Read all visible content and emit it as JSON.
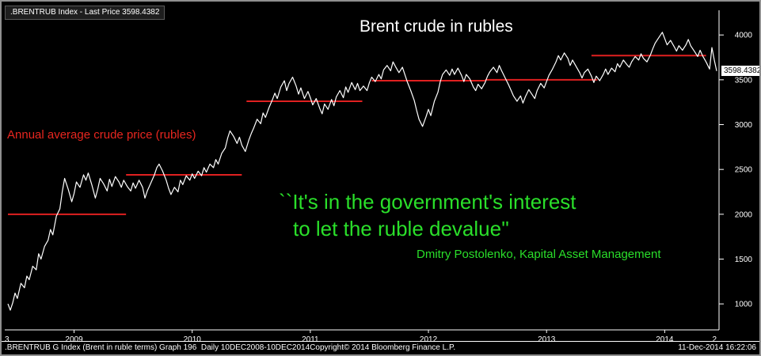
{
  "colors": {
    "background": "#000000",
    "price_line": "#ffffff",
    "average_line": "#e02020",
    "annotation_red": "#e8261f",
    "quote_green": "#2adf2a",
    "axis": "#ffffff",
    "tag_bg": "#ffffff",
    "tag_text": "#000000"
  },
  "legend": {
    "label": ".BRENTRUB Index - Last Price 3598.4382"
  },
  "title": "Brent crude in rubles",
  "annotation": {
    "text": "Annual average crude price (rubles)"
  },
  "quote": {
    "line1": "``It's in the government's interest",
    "line2": "to let the ruble devalue''",
    "attribution": "Dmitry Postolenko, Kapital Asset Management"
  },
  "last_price_tag": "3598.4382",
  "x_axis": {
    "partial_left": "3",
    "partial_right": "2",
    "years": [
      "2009",
      "2010",
      "2011",
      "2012",
      "2013",
      "2014"
    ]
  },
  "status_bar": {
    "left": ".BRENTRUB G Index (Brent in ruble terms) Graph 196  Daily 10DEC2008-10DEC2014",
    "center": "Copyright© 2014 Bloomberg Finance L.P.",
    "right": "11-Dec-2014 16:22:06"
  },
  "chart_data": {
    "type": "line",
    "title": "Brent crude in rubles",
    "xlabel": "",
    "ylabel": "",
    "x_unit": "decimal_year",
    "x_range": [
      2008.94,
      2014.96
    ],
    "ylim": [
      710,
      4240
    ],
    "y_ticks": [
      1000,
      1500,
      2000,
      2500,
      3000,
      3500,
      4000
    ],
    "x_tick_years": [
      2009,
      2010,
      2011,
      2012,
      2013,
      2014
    ],
    "grid": false,
    "legend_position": "top-left",
    "last_price": 3598.4382,
    "annual_averages": [
      {
        "year": 2009,
        "value": 2000,
        "span": [
          2008.94,
          2009.94
        ]
      },
      {
        "year": 2010,
        "value": 2440,
        "span": [
          2009.94,
          2010.92
        ]
      },
      {
        "year": 2011,
        "value": 3260,
        "span": [
          2010.96,
          2011.94
        ]
      },
      {
        "year": 2012,
        "value": 3490,
        "span": [
          2012.02,
          2012.98
        ]
      },
      {
        "year": 2013,
        "value": 3500,
        "span": [
          2012.98,
          2013.93
        ]
      },
      {
        "year": 2014,
        "value": 3770,
        "span": [
          2013.88,
          2014.85
        ]
      }
    ],
    "series": [
      {
        "name": ".BRENTRUB Index - Last Price",
        "color": "#ffffff",
        "points": [
          [
            2008.94,
            1000
          ],
          [
            2008.96,
            930
          ],
          [
            2008.98,
            1010
          ],
          [
            2009.0,
            1120
          ],
          [
            2009.02,
            1060
          ],
          [
            2009.05,
            1230
          ],
          [
            2009.08,
            1180
          ],
          [
            2009.1,
            1310
          ],
          [
            2009.12,
            1270
          ],
          [
            2009.15,
            1420
          ],
          [
            2009.18,
            1380
          ],
          [
            2009.2,
            1560
          ],
          [
            2009.22,
            1500
          ],
          [
            2009.25,
            1640
          ],
          [
            2009.28,
            1710
          ],
          [
            2009.3,
            1830
          ],
          [
            2009.32,
            1770
          ],
          [
            2009.35,
            1980
          ],
          [
            2009.38,
            2060
          ],
          [
            2009.4,
            2250
          ],
          [
            2009.42,
            2400
          ],
          [
            2009.45,
            2280
          ],
          [
            2009.48,
            2140
          ],
          [
            2009.5,
            2230
          ],
          [
            2009.52,
            2360
          ],
          [
            2009.55,
            2300
          ],
          [
            2009.58,
            2440
          ],
          [
            2009.6,
            2380
          ],
          [
            2009.62,
            2460
          ],
          [
            2009.65,
            2330
          ],
          [
            2009.68,
            2180
          ],
          [
            2009.7,
            2280
          ],
          [
            2009.72,
            2400
          ],
          [
            2009.75,
            2340
          ],
          [
            2009.78,
            2260
          ],
          [
            2009.8,
            2390
          ],
          [
            2009.82,
            2310
          ],
          [
            2009.85,
            2420
          ],
          [
            2009.88,
            2360
          ],
          [
            2009.9,
            2300
          ],
          [
            2009.92,
            2380
          ],
          [
            2009.95,
            2310
          ],
          [
            2009.98,
            2260
          ],
          [
            2010.0,
            2350
          ],
          [
            2010.02,
            2290
          ],
          [
            2010.05,
            2380
          ],
          [
            2010.08,
            2300
          ],
          [
            2010.1,
            2180
          ],
          [
            2010.12,
            2260
          ],
          [
            2010.15,
            2350
          ],
          [
            2010.18,
            2440
          ],
          [
            2010.2,
            2520
          ],
          [
            2010.22,
            2560
          ],
          [
            2010.25,
            2480
          ],
          [
            2010.28,
            2380
          ],
          [
            2010.3,
            2290
          ],
          [
            2010.32,
            2220
          ],
          [
            2010.35,
            2300
          ],
          [
            2010.38,
            2250
          ],
          [
            2010.4,
            2380
          ],
          [
            2010.42,
            2330
          ],
          [
            2010.45,
            2430
          ],
          [
            2010.48,
            2380
          ],
          [
            2010.5,
            2450
          ],
          [
            2010.52,
            2400
          ],
          [
            2010.55,
            2480
          ],
          [
            2010.58,
            2430
          ],
          [
            2010.6,
            2520
          ],
          [
            2010.62,
            2470
          ],
          [
            2010.65,
            2560
          ],
          [
            2010.68,
            2520
          ],
          [
            2010.7,
            2610
          ],
          [
            2010.72,
            2560
          ],
          [
            2010.75,
            2680
          ],
          [
            2010.78,
            2740
          ],
          [
            2010.8,
            2850
          ],
          [
            2010.82,
            2930
          ],
          [
            2010.85,
            2870
          ],
          [
            2010.88,
            2790
          ],
          [
            2010.9,
            2860
          ],
          [
            2010.92,
            2770
          ],
          [
            2010.95,
            2700
          ],
          [
            2010.98,
            2830
          ],
          [
            2011.0,
            2900
          ],
          [
            2011.02,
            2960
          ],
          [
            2011.05,
            3060
          ],
          [
            2011.08,
            3010
          ],
          [
            2011.1,
            3130
          ],
          [
            2011.12,
            3080
          ],
          [
            2011.15,
            3190
          ],
          [
            2011.18,
            3280
          ],
          [
            2011.2,
            3350
          ],
          [
            2011.22,
            3290
          ],
          [
            2011.25,
            3420
          ],
          [
            2011.28,
            3490
          ],
          [
            2011.3,
            3380
          ],
          [
            2011.32,
            3460
          ],
          [
            2011.35,
            3530
          ],
          [
            2011.38,
            3430
          ],
          [
            2011.4,
            3340
          ],
          [
            2011.42,
            3410
          ],
          [
            2011.45,
            3290
          ],
          [
            2011.48,
            3370
          ],
          [
            2011.5,
            3300
          ],
          [
            2011.52,
            3220
          ],
          [
            2011.55,
            3290
          ],
          [
            2011.58,
            3180
          ],
          [
            2011.6,
            3120
          ],
          [
            2011.62,
            3230
          ],
          [
            2011.65,
            3170
          ],
          [
            2011.68,
            3280
          ],
          [
            2011.7,
            3210
          ],
          [
            2011.72,
            3310
          ],
          [
            2011.75,
            3380
          ],
          [
            2011.78,
            3300
          ],
          [
            2011.8,
            3420
          ],
          [
            2011.82,
            3360
          ],
          [
            2011.85,
            3470
          ],
          [
            2011.88,
            3390
          ],
          [
            2011.9,
            3460
          ],
          [
            2011.92,
            3380
          ],
          [
            2011.95,
            3430
          ],
          [
            2011.98,
            3380
          ],
          [
            2012.0,
            3470
          ],
          [
            2012.02,
            3530
          ],
          [
            2012.05,
            3480
          ],
          [
            2012.08,
            3560
          ],
          [
            2012.1,
            3510
          ],
          [
            2012.12,
            3610
          ],
          [
            2012.15,
            3660
          ],
          [
            2012.18,
            3600
          ],
          [
            2012.2,
            3700
          ],
          [
            2012.22,
            3650
          ],
          [
            2012.25,
            3580
          ],
          [
            2012.28,
            3640
          ],
          [
            2012.3,
            3560
          ],
          [
            2012.32,
            3480
          ],
          [
            2012.35,
            3380
          ],
          [
            2012.38,
            3270
          ],
          [
            2012.4,
            3160
          ],
          [
            2012.42,
            3060
          ],
          [
            2012.45,
            2980
          ],
          [
            2012.48,
            3090
          ],
          [
            2012.5,
            3170
          ],
          [
            2012.52,
            3100
          ],
          [
            2012.55,
            3260
          ],
          [
            2012.58,
            3360
          ],
          [
            2012.6,
            3480
          ],
          [
            2012.62,
            3560
          ],
          [
            2012.65,
            3610
          ],
          [
            2012.68,
            3550
          ],
          [
            2012.7,
            3620
          ],
          [
            2012.72,
            3560
          ],
          [
            2012.75,
            3630
          ],
          [
            2012.78,
            3550
          ],
          [
            2012.8,
            3480
          ],
          [
            2012.82,
            3560
          ],
          [
            2012.85,
            3510
          ],
          [
            2012.88,
            3420
          ],
          [
            2012.9,
            3380
          ],
          [
            2012.92,
            3450
          ],
          [
            2012.95,
            3400
          ],
          [
            2012.98,
            3470
          ],
          [
            2013.0,
            3540
          ],
          [
            2013.02,
            3590
          ],
          [
            2013.05,
            3640
          ],
          [
            2013.08,
            3580
          ],
          [
            2013.1,
            3660
          ],
          [
            2013.12,
            3600
          ],
          [
            2013.15,
            3520
          ],
          [
            2013.18,
            3440
          ],
          [
            2013.2,
            3380
          ],
          [
            2013.22,
            3320
          ],
          [
            2013.25,
            3260
          ],
          [
            2013.28,
            3320
          ],
          [
            2013.3,
            3240
          ],
          [
            2013.32,
            3310
          ],
          [
            2013.35,
            3390
          ],
          [
            2013.38,
            3330
          ],
          [
            2013.4,
            3290
          ],
          [
            2013.42,
            3380
          ],
          [
            2013.45,
            3460
          ],
          [
            2013.48,
            3410
          ],
          [
            2013.5,
            3480
          ],
          [
            2013.52,
            3550
          ],
          [
            2013.55,
            3620
          ],
          [
            2013.58,
            3700
          ],
          [
            2013.6,
            3770
          ],
          [
            2013.62,
            3720
          ],
          [
            2013.65,
            3800
          ],
          [
            2013.68,
            3740
          ],
          [
            2013.7,
            3660
          ],
          [
            2013.72,
            3720
          ],
          [
            2013.75,
            3650
          ],
          [
            2013.78,
            3580
          ],
          [
            2013.8,
            3520
          ],
          [
            2013.82,
            3580
          ],
          [
            2013.85,
            3620
          ],
          [
            2013.88,
            3540
          ],
          [
            2013.9,
            3470
          ],
          [
            2013.92,
            3540
          ],
          [
            2013.95,
            3490
          ],
          [
            2013.98,
            3560
          ],
          [
            2014.0,
            3620
          ],
          [
            2014.02,
            3560
          ],
          [
            2014.05,
            3630
          ],
          [
            2014.08,
            3590
          ],
          [
            2014.1,
            3680
          ],
          [
            2014.12,
            3640
          ],
          [
            2014.15,
            3720
          ],
          [
            2014.18,
            3670
          ],
          [
            2014.2,
            3640
          ],
          [
            2014.22,
            3700
          ],
          [
            2014.25,
            3760
          ],
          [
            2014.28,
            3720
          ],
          [
            2014.3,
            3790
          ],
          [
            2014.32,
            3740
          ],
          [
            2014.35,
            3700
          ],
          [
            2014.38,
            3780
          ],
          [
            2014.4,
            3850
          ],
          [
            2014.42,
            3910
          ],
          [
            2014.45,
            3970
          ],
          [
            2014.48,
            4030
          ],
          [
            2014.5,
            3960
          ],
          [
            2014.52,
            3890
          ],
          [
            2014.55,
            3940
          ],
          [
            2014.58,
            3870
          ],
          [
            2014.6,
            3820
          ],
          [
            2014.62,
            3880
          ],
          [
            2014.65,
            3830
          ],
          [
            2014.68,
            3890
          ],
          [
            2014.7,
            3950
          ],
          [
            2014.72,
            3880
          ],
          [
            2014.75,
            3820
          ],
          [
            2014.78,
            3760
          ],
          [
            2014.8,
            3830
          ],
          [
            2014.82,
            3770
          ],
          [
            2014.85,
            3700
          ],
          [
            2014.88,
            3620
          ],
          [
            2014.9,
            3860
          ],
          [
            2014.92,
            3720
          ],
          [
            2014.94,
            3598.44
          ]
        ]
      }
    ]
  }
}
